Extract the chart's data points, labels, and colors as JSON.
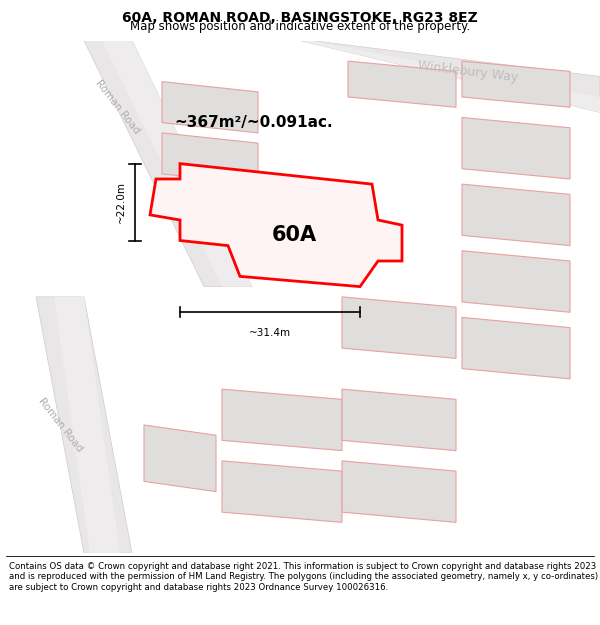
{
  "title": "60A, ROMAN ROAD, BASINGSTOKE, RG23 8EZ",
  "subtitle": "Map shows position and indicative extent of the property.",
  "footer": "Contains OS data © Crown copyright and database right 2021. This information is subject to Crown copyright and database rights 2023 and is reproduced with the permission of HM Land Registry. The polygons (including the associated geometry, namely x, y co-ordinates) are subject to Crown copyright and database rights 2023 Ordnance Survey 100026316.",
  "area_label": "~367m²/~0.091ac.",
  "label_60A": "60A",
  "dim_width": "~31.4m",
  "dim_height": "~22.0m",
  "road_label_upper": "Roman Road",
  "road_label_lower": "Roman Road",
  "winklebury_label": "Winklebury Way",
  "title_fontsize": 10,
  "subtitle_fontsize": 8.5,
  "footer_fontsize": 6.2,
  "road_fill": "#e8e6e6",
  "road_edge": "#d0cccc",
  "plot_fill": "#e0dddd",
  "plot_edge": "#e8a0a0",
  "highlight_fill": "#fff4f4",
  "highlight_edge": "#ff0000",
  "map_bg": "#f5f3f3",
  "road_label_color": "#b0acac",
  "winklebury_color": "#c0bcbc"
}
